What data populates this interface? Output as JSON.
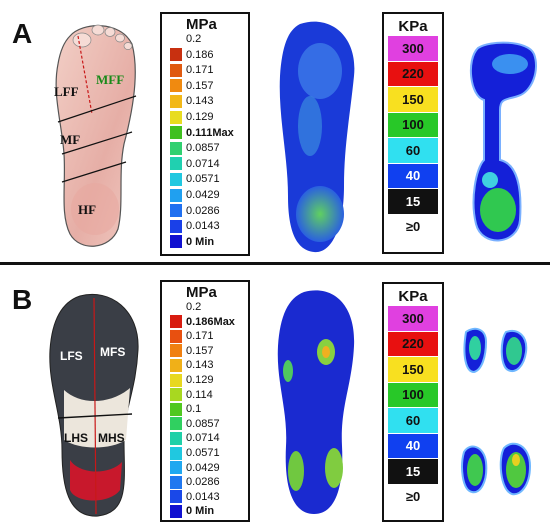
{
  "panels": {
    "a": {
      "letter": "A"
    },
    "b": {
      "letter": "B"
    }
  },
  "foot_regions": {
    "lff": "LFF",
    "mff": "MFF",
    "mf": "MF",
    "hf": "HF"
  },
  "shoe_regions": {
    "lfs": "LFS",
    "mfs": "MFS",
    "lhs": "LHS",
    "mhs": "MHS"
  },
  "legend_a": {
    "title": "MPa",
    "entries": [
      {
        "label": "0.2",
        "color": "#ffffff",
        "bold": false
      },
      {
        "label": "0.186",
        "color": "#c83010",
        "bold": false
      },
      {
        "label": "0.171",
        "color": "#e05a10",
        "bold": false
      },
      {
        "label": "0.157",
        "color": "#f08a10",
        "bold": false
      },
      {
        "label": "0.143",
        "color": "#f2b818",
        "bold": false
      },
      {
        "label": "0.129",
        "color": "#e8dc20",
        "bold": false
      },
      {
        "label": "0.111Max",
        "color": "#40c020",
        "bold": true
      },
      {
        "label": "0.0857",
        "color": "#30d070",
        "bold": false
      },
      {
        "label": "0.0714",
        "color": "#20d0b0",
        "bold": false
      },
      {
        "label": "0.0571",
        "color": "#20c8e0",
        "bold": false
      },
      {
        "label": "0.0429",
        "color": "#20a0f0",
        "bold": false
      },
      {
        "label": "0.0286",
        "color": "#2070f0",
        "bold": false
      },
      {
        "label": "0.0143",
        "color": "#1a40e8",
        "bold": false
      },
      {
        "label": "0 Min",
        "color": "#1010d0",
        "bold": true
      }
    ]
  },
  "legend_b": {
    "title": "MPa",
    "entries": [
      {
        "label": "0.2",
        "color": "#ffffff",
        "bold": false
      },
      {
        "label": "0.186Max",
        "color": "#d81c10",
        "bold": true
      },
      {
        "label": "0.171",
        "color": "#e85010",
        "bold": false
      },
      {
        "label": "0.157",
        "color": "#f08010",
        "bold": false
      },
      {
        "label": "0.143",
        "color": "#f0b018",
        "bold": false
      },
      {
        "label": "0.129",
        "color": "#e8d820",
        "bold": false
      },
      {
        "label": "0.114",
        "color": "#a8d820",
        "bold": false
      },
      {
        "label": "0.1",
        "color": "#50c820",
        "bold": false
      },
      {
        "label": "0.0857",
        "color": "#30d060",
        "bold": false
      },
      {
        "label": "0.0714",
        "color": "#20d0a8",
        "bold": false
      },
      {
        "label": "0.0571",
        "color": "#20c8e0",
        "bold": false
      },
      {
        "label": "0.0429",
        "color": "#20a8f0",
        "bold": false
      },
      {
        "label": "0.0286",
        "color": "#2078f0",
        "bold": false
      },
      {
        "label": "0.0143",
        "color": "#1a48e8",
        "bold": false
      },
      {
        "label": "0 Min",
        "color": "#1010d0",
        "bold": true
      }
    ]
  },
  "kpa_legend": {
    "title": "KPa",
    "entries": [
      {
        "label": "300",
        "color": "#e040e0",
        "text": "#111111"
      },
      {
        "label": "220",
        "color": "#e81010",
        "text": "#111111"
      },
      {
        "label": "150",
        "color": "#f8e020",
        "text": "#111111"
      },
      {
        "label": "100",
        "color": "#28c828",
        "text": "#111111"
      },
      {
        "label": "60",
        "color": "#30e0f0",
        "text": "#111111"
      },
      {
        "label": "40",
        "color": "#1040f0",
        "text": "#ffffff"
      },
      {
        "label": "15",
        "color": "#111111",
        "text": "#ffffff"
      },
      {
        "label": "≥0",
        "color": "#ffffff",
        "text": "#111111"
      }
    ]
  }
}
